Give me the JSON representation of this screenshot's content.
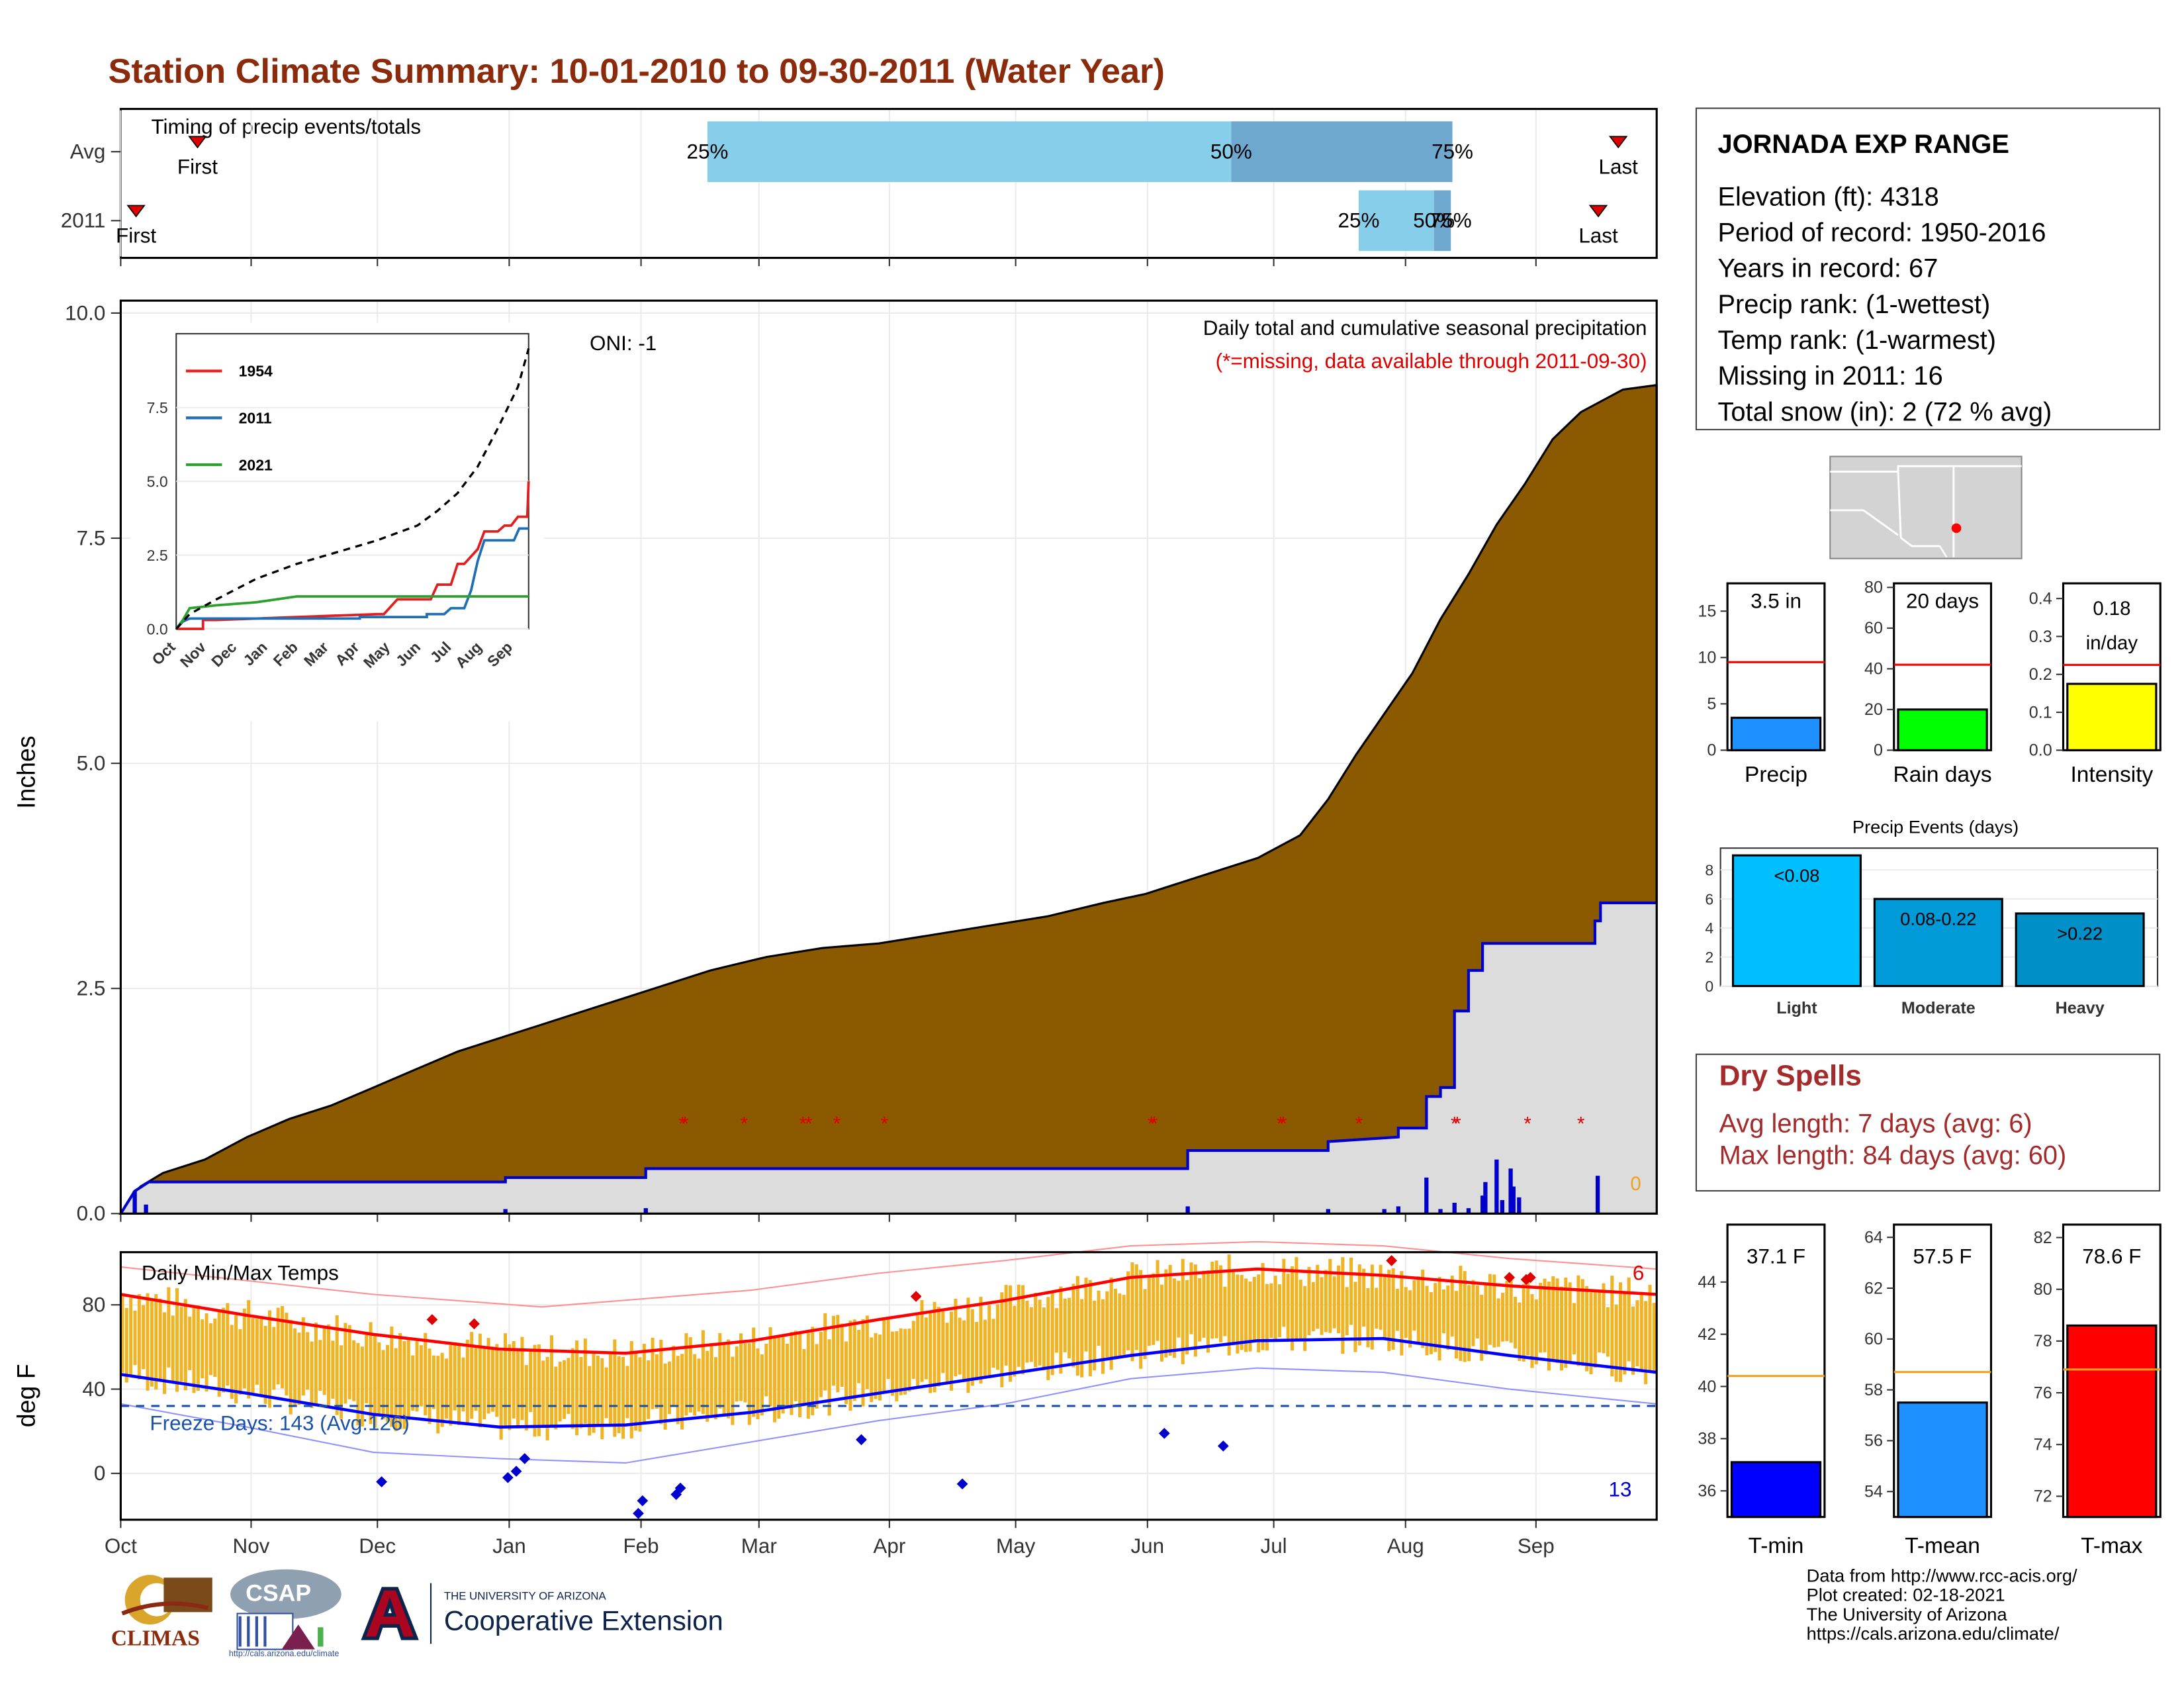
{
  "title": "Station Climate Summary: 10-01-2010 to 09-30-2011 (Water Year)",
  "timing": {
    "label": "Timing of precip events/totals",
    "rows": [
      {
        "label": "Avg",
        "first": "First",
        "last": "Last",
        "first_pos": 0.05,
        "last_pos": 0.975,
        "q25": 0.382,
        "q50": 0.723,
        "q75": 0.867
      },
      {
        "label": "2011",
        "first": "First",
        "last": "Last",
        "first_pos": 0.01,
        "last_pos": 0.962,
        "q25": 0.806,
        "q50": 0.855,
        "q75": 0.866
      }
    ],
    "pct_labels": [
      "25%",
      "50%",
      "75%"
    ],
    "colors": {
      "light": "#87ceeb",
      "dark": "#6fa8cf",
      "marker": "#e00000"
    }
  },
  "main": {
    "ylabel": "Inches",
    "ylim": [
      0,
      10
    ],
    "yticks": [
      "0.0",
      "2.5",
      "5.0",
      "7.5",
      "10.0"
    ],
    "months": [
      "Oct",
      "Nov",
      "Dec",
      "Jan",
      "Feb",
      "Mar",
      "Apr",
      "May",
      "Jun",
      "Jul",
      "Aug",
      "Sep"
    ],
    "oni": "ONI: -1",
    "header": "Daily total and cumulative seasonal precipitation",
    "missing_note": "(*=missing, data available through 2011-09-30)",
    "zero_label": "0",
    "colors": {
      "avg_fill": "#8b5a00",
      "obs_fill": "#dcdcdc",
      "obs_line": "#0000cc",
      "missing": "#e00000",
      "daily": "#0000cc"
    },
    "avg_cum": [
      [
        0,
        0
      ],
      [
        7,
        0.3
      ],
      [
        15,
        0.45
      ],
      [
        30,
        0.6
      ],
      [
        45,
        0.85
      ],
      [
        60,
        1.05
      ],
      [
        75,
        1.2
      ],
      [
        90,
        1.4
      ],
      [
        105,
        1.6
      ],
      [
        120,
        1.8
      ],
      [
        135,
        1.95
      ],
      [
        150,
        2.1
      ],
      [
        165,
        2.25
      ],
      [
        180,
        2.4
      ],
      [
        195,
        2.55
      ],
      [
        210,
        2.7
      ],
      [
        230,
        2.85
      ],
      [
        250,
        2.95
      ],
      [
        270,
        3.0
      ],
      [
        290,
        3.1
      ],
      [
        310,
        3.2
      ],
      [
        330,
        3.3
      ],
      [
        350,
        3.45
      ],
      [
        365,
        3.55
      ],
      [
        385,
        3.75
      ],
      [
        405,
        3.95
      ],
      [
        420,
        4.2
      ],
      [
        430,
        4.6
      ],
      [
        440,
        5.1
      ],
      [
        450,
        5.55
      ],
      [
        460,
        6.0
      ],
      [
        470,
        6.6
      ],
      [
        480,
        7.1
      ],
      [
        490,
        7.65
      ],
      [
        500,
        8.1
      ],
      [
        510,
        8.6
      ],
      [
        520,
        8.9
      ],
      [
        535,
        9.15
      ],
      [
        547,
        9.2
      ]
    ],
    "obs_cum": [
      [
        0,
        0
      ],
      [
        5,
        0.25
      ],
      [
        10,
        0.35
      ],
      [
        137,
        0.35
      ],
      [
        137,
        0.4
      ],
      [
        187,
        0.4
      ],
      [
        187,
        0.5
      ],
      [
        380,
        0.5
      ],
      [
        380,
        0.7
      ],
      [
        430,
        0.7
      ],
      [
        430,
        0.8
      ],
      [
        430,
        0.8
      ],
      [
        455,
        0.85
      ],
      [
        455,
        0.95
      ],
      [
        465,
        0.95
      ],
      [
        465,
        1.3
      ],
      [
        470,
        1.3
      ],
      [
        470,
        1.4
      ],
      [
        475,
        1.4
      ],
      [
        475,
        2.25
      ],
      [
        480,
        2.25
      ],
      [
        480,
        2.7
      ],
      [
        485,
        2.7
      ],
      [
        485,
        3.0
      ],
      [
        525,
        3.0
      ],
      [
        525,
        3.25
      ],
      [
        527,
        3.25
      ],
      [
        527,
        3.45
      ],
      [
        547,
        3.45
      ]
    ],
    "daily_bars": [
      [
        5,
        0.25
      ],
      [
        9,
        0.1
      ],
      [
        137,
        0.05
      ],
      [
        187,
        0.06
      ],
      [
        380,
        0.08
      ],
      [
        430,
        0.05
      ],
      [
        450,
        0.05
      ],
      [
        455,
        0.08
      ],
      [
        465,
        0.4
      ],
      [
        470,
        0.05
      ],
      [
        475,
        0.12
      ],
      [
        480,
        0.06
      ],
      [
        485,
        0.2
      ],
      [
        486,
        0.35
      ],
      [
        490,
        0.6
      ],
      [
        492,
        0.15
      ],
      [
        495,
        0.5
      ],
      [
        496,
        0.3
      ],
      [
        498,
        0.18
      ],
      [
        526,
        0.42
      ]
    ],
    "missing_days": [
      200,
      201,
      222,
      243,
      245,
      255,
      272,
      367,
      368,
      413,
      414,
      441,
      475,
      476,
      501,
      520
    ],
    "inset": {
      "yticks": [
        "0.0",
        "2.5",
        "5.0",
        "7.5"
      ],
      "ylim": [
        0,
        10
      ],
      "months": [
        "Oct",
        "Nov",
        "Dec",
        "Jan",
        "Feb",
        "Mar",
        "Apr",
        "May",
        "Jun",
        "Jul",
        "Aug",
        "Sep"
      ],
      "series": [
        {
          "name": "1954",
          "color": "#e02020",
          "values": [
            [
              0,
              0
            ],
            [
              20,
              0
            ],
            [
              20,
              0.3
            ],
            [
              30,
              0.3
            ],
            [
              60,
              0.35
            ],
            [
              150,
              0.5
            ],
            [
              155,
              0.5
            ],
            [
              165,
              1.0
            ],
            [
              190,
              1.0
            ],
            [
              195,
              1.5
            ],
            [
              205,
              1.5
            ],
            [
              210,
              2.2
            ],
            [
              215,
              2.2
            ],
            [
              225,
              2.7
            ],
            [
              230,
              3.3
            ],
            [
              240,
              3.3
            ],
            [
              245,
              3.5
            ],
            [
              250,
              3.5
            ],
            [
              255,
              3.8
            ],
            [
              262,
              3.8
            ],
            [
              263,
              5.0
            ]
          ]
        },
        {
          "name": "2011",
          "color": "#1f6fb5",
          "values": [
            [
              0,
              0
            ],
            [
              5,
              0.25
            ],
            [
              10,
              0.35
            ],
            [
              137,
              0.35
            ],
            [
              137,
              0.4
            ],
            [
              187,
              0.4
            ],
            [
              187,
              0.5
            ],
            [
              200,
              0.5
            ],
            [
              205,
              0.7
            ],
            [
              215,
              0.7
            ],
            [
              220,
              1.3
            ],
            [
              225,
              2.3
            ],
            [
              230,
              3.0
            ],
            [
              252,
              3.0
            ],
            [
              256,
              3.4
            ],
            [
              263,
              3.4
            ]
          ]
        },
        {
          "name": "2021",
          "color": "#2ca02c",
          "values": [
            [
              0,
              0
            ],
            [
              5,
              0.3
            ],
            [
              10,
              0.7
            ],
            [
              30,
              0.8
            ],
            [
              60,
              0.9
            ],
            [
              90,
              1.1
            ],
            [
              263,
              1.1
            ]
          ]
        },
        {
          "name": "avg",
          "color": "#000000",
          "dashed": true,
          "values": [
            [
              0,
              0
            ],
            [
              10,
              0.5
            ],
            [
              30,
              1.0
            ],
            [
              60,
              1.7
            ],
            [
              90,
              2.2
            ],
            [
              120,
              2.6
            ],
            [
              150,
              3.0
            ],
            [
              180,
              3.5
            ],
            [
              195,
              4.0
            ],
            [
              210,
              4.6
            ],
            [
              225,
              5.5
            ],
            [
              240,
              6.8
            ],
            [
              255,
              8.2
            ],
            [
              263,
              9.5
            ]
          ]
        }
      ]
    }
  },
  "temps": {
    "label": "Daily Min/Max Temps",
    "ylabel": "deg F",
    "yticks": [
      "0",
      "40",
      "80"
    ],
    "ylim": [
      -22,
      105
    ],
    "freeze_label": "Freeze Days: 143 (Avg:126)",
    "freeze_temp": 32,
    "hot_count": "6",
    "cold_count": "13",
    "max_norm": [
      [
        0,
        85
      ],
      [
        30,
        75
      ],
      [
        60,
        66
      ],
      [
        90,
        59
      ],
      [
        120,
        57
      ],
      [
        150,
        63
      ],
      [
        180,
        73
      ],
      [
        210,
        82
      ],
      [
        240,
        93
      ],
      [
        270,
        97
      ],
      [
        300,
        94
      ],
      [
        330,
        89
      ],
      [
        365,
        85
      ]
    ],
    "min_norm": [
      [
        0,
        47
      ],
      [
        30,
        38
      ],
      [
        60,
        28
      ],
      [
        90,
        22
      ],
      [
        120,
        23
      ],
      [
        150,
        29
      ],
      [
        180,
        38
      ],
      [
        210,
        47
      ],
      [
        240,
        56
      ],
      [
        270,
        63
      ],
      [
        300,
        64
      ],
      [
        330,
        56
      ],
      [
        365,
        48
      ]
    ],
    "max_record": [
      [
        0,
        98
      ],
      [
        60,
        85
      ],
      [
        100,
        79
      ],
      [
        150,
        87
      ],
      [
        180,
        95
      ],
      [
        210,
        101
      ],
      [
        240,
        108
      ],
      [
        270,
        110
      ],
      [
        300,
        108
      ],
      [
        330,
        102
      ],
      [
        365,
        97
      ]
    ],
    "min_record": [
      [
        0,
        33
      ],
      [
        30,
        22
      ],
      [
        60,
        10
      ],
      [
        90,
        7
      ],
      [
        120,
        5
      ],
      [
        150,
        15
      ],
      [
        180,
        25
      ],
      [
        210,
        33
      ],
      [
        240,
        45
      ],
      [
        270,
        50
      ],
      [
        300,
        48
      ],
      [
        330,
        40
      ],
      [
        365,
        33
      ]
    ],
    "colors": {
      "bar": "#f0b323",
      "max": "#ff0000",
      "min": "#0000ff",
      "freeze": "#1a52a8"
    },
    "cold_points": [
      [
        62,
        -4
      ],
      [
        92,
        -2
      ],
      [
        94,
        1
      ],
      [
        96,
        7
      ],
      [
        123,
        -19
      ],
      [
        124,
        -13
      ],
      [
        132,
        -10
      ],
      [
        133,
        -7
      ],
      [
        176,
        16
      ],
      [
        200,
        -5
      ],
      [
        248,
        19
      ],
      [
        262,
        13
      ]
    ],
    "hot_points": [
      [
        74,
        73
      ],
      [
        84,
        71
      ],
      [
        189,
        84
      ],
      [
        302,
        101
      ],
      [
        330,
        93
      ],
      [
        334,
        92
      ],
      [
        335,
        93
      ]
    ]
  },
  "station": {
    "name": "JORNADA EXP RANGE",
    "lines": [
      "Elevation (ft): 4318",
      "Period of record: 1950-2016",
      "Years in record: 67",
      "Precip rank:  (1-wettest)",
      "Temp rank:  (1-warmest)",
      "Missing in 2011: 16",
      "Total snow (in): 2 (72 % avg)"
    ]
  },
  "precip_bars": [
    {
      "label": "Precip",
      "value_text": "3.5 in",
      "value": 3.5,
      "avg": 9.5,
      "ymax": 18,
      "yticks": [
        "0",
        "5",
        "10",
        "15"
      ],
      "tick_vals": [
        0,
        5,
        10,
        15
      ],
      "color": "#1e90ff"
    },
    {
      "label": "Rain days",
      "value_text": "20 days",
      "value": 20,
      "avg": 42,
      "ymax": 82,
      "yticks": [
        "0",
        "20",
        "40",
        "60",
        "80"
      ],
      "tick_vals": [
        0,
        20,
        40,
        60,
        80
      ],
      "color": "#00ff00"
    },
    {
      "label": "Intensity",
      "value_text": "0.18 in/day",
      "value": 0.175,
      "avg": 0.225,
      "ymax": 0.44,
      "yticks": [
        "0.0",
        "0.1",
        "0.2",
        "0.3",
        "0.4"
      ],
      "tick_vals": [
        0,
        0.1,
        0.2,
        0.3,
        0.4
      ],
      "color": "#ffff00"
    }
  ],
  "events": {
    "title": "Precip Events (days)",
    "yticks": [
      "0",
      "2",
      "4",
      "6",
      "8"
    ],
    "ymax": 9.5,
    "categories": [
      "Light",
      "Moderate",
      "Heavy"
    ],
    "values": [
      9,
      6,
      5
    ],
    "value_labels": [
      "<0.08",
      "0.08-0.22",
      ">0.22"
    ],
    "colors": [
      "#00bfff",
      "#009ad9",
      "#0090c7"
    ]
  },
  "dry": {
    "title": "Dry Spells",
    "avg": "Avg length: 7 days (avg: 6)",
    "max": "Max length: 84 days (avg: 60)",
    "color": "#a52a2a"
  },
  "temp_bars": [
    {
      "label": "T-min",
      "value_text": "37.1 F",
      "value": 37.1,
      "avg": 40.4,
      "ymin": 35,
      "ymax": 46.2,
      "tick_vals": [
        36,
        38,
        40,
        42,
        44
      ],
      "yticks": [
        "36",
        "38",
        "40",
        "42",
        "44"
      ],
      "color": "#0000ff"
    },
    {
      "label": "T-mean",
      "value_text": "57.5 F",
      "value": 57.5,
      "avg": 58.7,
      "ymin": 53,
      "ymax": 64.5,
      "tick_vals": [
        54,
        56,
        58,
        60,
        62,
        64
      ],
      "yticks": [
        "54",
        "56",
        "58",
        "60",
        "62",
        "64"
      ],
      "color": "#1e90ff"
    },
    {
      "label": "T-max",
      "value_text": "78.6 F",
      "value": 78.6,
      "avg": 76.9,
      "ymin": 71.2,
      "ymax": 82.5,
      "tick_vals": [
        72,
        74,
        76,
        78,
        80,
        82
      ],
      "yticks": [
        "72",
        "74",
        "76",
        "78",
        "80",
        "82"
      ],
      "color": "#ff0000"
    }
  ],
  "credits": [
    "Data from http://www.rcc-acis.org/",
    "Plot created: 02-18-2021",
    "The University of Arizona",
    "https://cals.arizona.edu/climate/"
  ],
  "logos": {
    "climas": "CLIMAS",
    "csap": "CSAP",
    "csap_url": "http://cals.arizona.edu/climate",
    "ua_small": "THE UNIVERSITY OF ARIZONA",
    "ua_big": "Cooperative Extension"
  }
}
